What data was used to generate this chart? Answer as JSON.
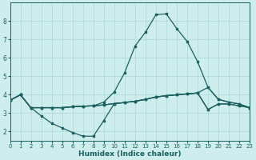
{
  "xlabel": "Humidex (Indice chaleur)",
  "background_color": "#ceeeed",
  "grid_color": "#aad8d6",
  "line_color": "#1a6060",
  "xlim": [
    0,
    23
  ],
  "ylim": [
    1.5,
    9.0
  ],
  "x_ticks": [
    0,
    1,
    2,
    3,
    4,
    5,
    6,
    7,
    8,
    9,
    10,
    11,
    12,
    13,
    14,
    15,
    16,
    17,
    18,
    19,
    20,
    21,
    22,
    23
  ],
  "y_ticks": [
    2,
    3,
    4,
    5,
    6,
    7,
    8
  ],
  "line_peak_x": [
    0,
    1,
    2,
    3,
    4,
    5,
    6,
    7,
    8,
    9,
    10,
    11,
    12,
    13,
    14,
    15,
    16,
    17,
    18,
    19,
    20,
    21,
    22,
    23
  ],
  "line_peak_y": [
    3.7,
    4.0,
    3.3,
    3.3,
    3.3,
    3.3,
    3.35,
    3.38,
    3.4,
    3.6,
    4.15,
    5.2,
    6.65,
    7.4,
    8.35,
    8.4,
    7.6,
    6.9,
    5.8,
    4.4,
    3.75,
    3.6,
    3.5,
    3.3
  ],
  "line_upper_x": [
    0,
    1,
    2,
    3,
    4,
    5,
    6,
    7,
    8,
    9,
    10,
    11,
    12,
    13,
    14,
    15,
    16,
    17,
    18,
    19,
    20,
    21,
    22,
    23
  ],
  "line_upper_y": [
    3.7,
    4.0,
    3.3,
    3.3,
    3.3,
    3.3,
    3.35,
    3.38,
    3.4,
    3.45,
    3.52,
    3.58,
    3.65,
    3.75,
    3.88,
    3.95,
    4.0,
    4.05,
    4.1,
    4.4,
    3.75,
    3.6,
    3.5,
    3.3
  ],
  "line_mid_x": [
    0,
    1,
    2,
    3,
    4,
    5,
    6,
    7,
    8,
    9,
    10,
    11,
    12,
    13,
    14,
    15,
    16,
    17,
    18,
    19,
    20,
    21,
    22,
    23
  ],
  "line_mid_y": [
    3.7,
    4.0,
    3.3,
    3.3,
    3.3,
    3.3,
    3.35,
    3.38,
    3.4,
    3.45,
    3.52,
    3.58,
    3.65,
    3.75,
    3.88,
    3.95,
    4.0,
    4.05,
    4.1,
    3.2,
    3.5,
    3.5,
    3.4,
    3.3
  ],
  "line_dip_x": [
    0,
    1,
    2,
    3,
    4,
    5,
    6,
    7,
    8,
    9,
    10,
    11,
    12,
    13,
    14,
    15,
    16,
    17,
    18,
    19,
    20,
    21,
    22,
    23
  ],
  "line_dip_y": [
    3.7,
    4.0,
    3.3,
    2.85,
    2.45,
    2.2,
    1.95,
    1.75,
    1.75,
    2.6,
    3.52,
    3.58,
    3.65,
    3.75,
    3.88,
    3.95,
    4.0,
    4.05,
    4.1,
    3.2,
    3.5,
    3.5,
    3.4,
    3.3
  ]
}
